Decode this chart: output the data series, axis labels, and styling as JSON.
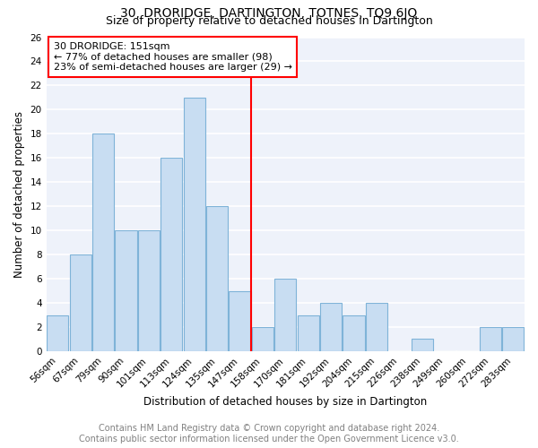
{
  "title": "30, DRORIDGE, DARTINGTON, TOTNES, TQ9 6JQ",
  "subtitle": "Size of property relative to detached houses in Dartington",
  "xlabel": "Distribution of detached houses by size in Dartington",
  "ylabel": "Number of detached properties",
  "categories": [
    "56sqm",
    "67sqm",
    "79sqm",
    "90sqm",
    "101sqm",
    "113sqm",
    "124sqm",
    "135sqm",
    "147sqm",
    "158sqm",
    "170sqm",
    "181sqm",
    "192sqm",
    "204sqm",
    "215sqm",
    "226sqm",
    "238sqm",
    "249sqm",
    "260sqm",
    "272sqm",
    "283sqm"
  ],
  "values": [
    3,
    8,
    18,
    10,
    10,
    16,
    21,
    12,
    5,
    2,
    6,
    3,
    4,
    3,
    4,
    0,
    1,
    0,
    0,
    2,
    2
  ],
  "bar_color": "#c8ddf2",
  "bar_edge_color": "#7fb3d8",
  "vline_x_index": 8,
  "annotation_title": "30 DRORIDGE: 151sqm",
  "annotation_line1": "← 77% of detached houses are smaller (98)",
  "annotation_line2": "23% of semi-detached houses are larger (29) →",
  "ylim": [
    0,
    26
  ],
  "yticks": [
    0,
    2,
    4,
    6,
    8,
    10,
    12,
    14,
    16,
    18,
    20,
    22,
    24,
    26
  ],
  "footer_line1": "Contains HM Land Registry data © Crown copyright and database right 2024.",
  "footer_line2": "Contains public sector information licensed under the Open Government Licence v3.0.",
  "bg_color": "#eef2fa",
  "grid_color": "#ffffff",
  "title_fontsize": 10,
  "subtitle_fontsize": 9,
  "axis_label_fontsize": 8.5,
  "tick_fontsize": 7.5,
  "annotation_fontsize": 8,
  "footer_fontsize": 7
}
